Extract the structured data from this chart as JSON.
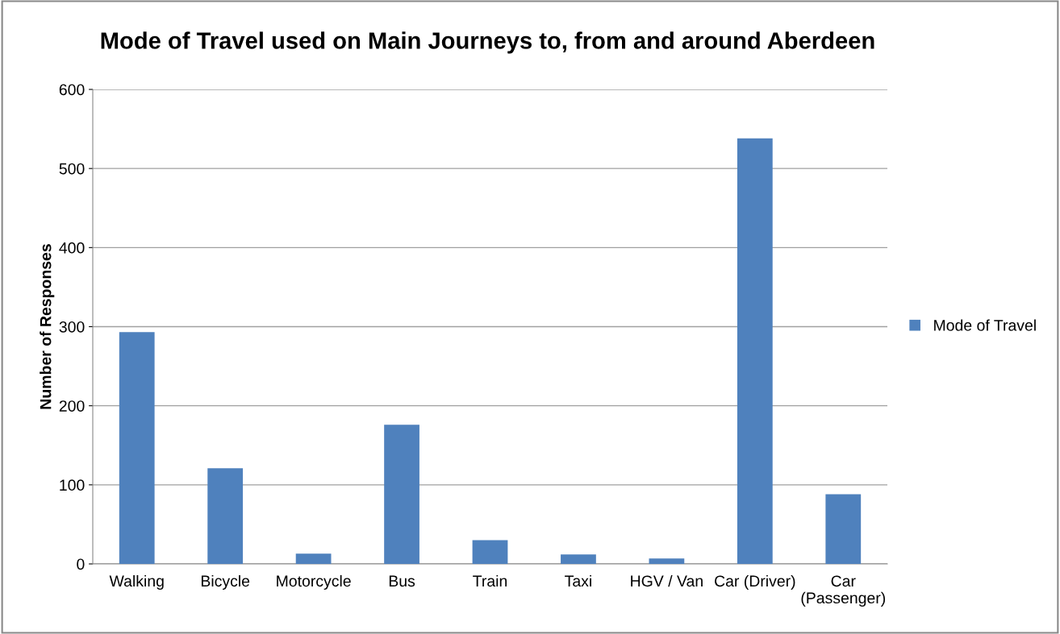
{
  "chart_data": {
    "type": "bar",
    "title": "Mode of Travel used on Main Journeys to, from and around Aberdeen",
    "ylabel": "Number of Responses",
    "categories": [
      "Walking",
      "Bicycle",
      "Motorcycle",
      "Bus",
      "Train",
      "Taxi",
      "HGV / Van",
      "Car (Driver)",
      "Car\n(Passenger)"
    ],
    "series": [
      {
        "name": "Mode of Travel",
        "color": "#4f81bd",
        "values": [
          293,
          121,
          13,
          176,
          30,
          12,
          7,
          538,
          88
        ]
      }
    ],
    "ylim": [
      0,
      600
    ],
    "yticks": [
      0,
      100,
      200,
      300,
      400,
      500,
      600
    ],
    "grid": "y",
    "legend": "right"
  }
}
